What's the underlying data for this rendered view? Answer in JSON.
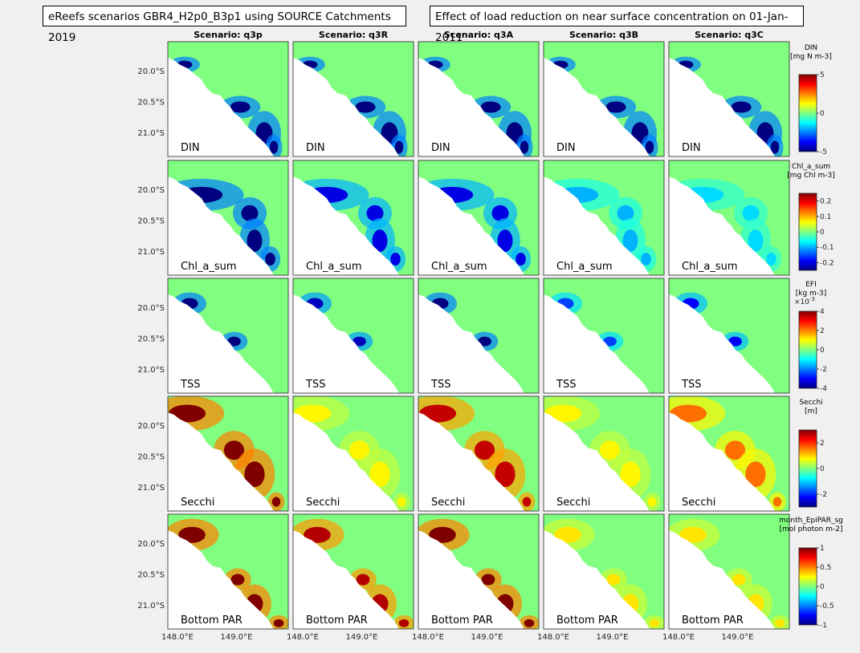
{
  "header": {
    "title_left": "eReefs scenarios GBR4_H2p0_B3p1 using SOURCE Catchments 2019",
    "title_right": "Effect of load reduction on near surface concentration on 01-Jan-2011"
  },
  "chart_data": {
    "type": "heatmap",
    "scenarios": [
      "Scenario: q3p",
      "Scenario: q3R",
      "Scenario: q3A",
      "Scenario: q3B",
      "Scenario: q3C"
    ],
    "lat_ticks": [
      "20.0°S",
      "20.5°S",
      "21.0°S"
    ],
    "lon_ticks": [
      "148.0°E",
      "149.0°E"
    ],
    "variables": [
      {
        "label": "DIN",
        "cbar_title": [
          "DIN",
          "[mg N m-3]"
        ],
        "cbar_ticks": [
          "5",
          "0",
          "-5"
        ],
        "cbar_range": [
          -5,
          5
        ],
        "panel_extremes": [
          -5,
          -5,
          -5,
          -5,
          -5
        ]
      },
      {
        "label": "Chl_a_sum",
        "cbar_title": [
          "Chl_a_sum",
          "[mg Chl m-3]"
        ],
        "cbar_ticks": [
          "0.2",
          "0.1",
          "0",
          "-0.1",
          "-0.2"
        ],
        "cbar_range": [
          -0.25,
          0.25
        ],
        "panel_extremes": [
          -0.25,
          -0.2,
          -0.2,
          -0.1,
          -0.08
        ]
      },
      {
        "label": "TSS",
        "cbar_title": [
          "EFI",
          "[kg m-3]"
        ],
        "cbar_exponent": "×10",
        "cbar_exponent_power": "-3",
        "cbar_ticks": [
          "4",
          "2",
          "0",
          "-2",
          "-4"
        ],
        "cbar_range": [
          -4,
          4
        ],
        "panel_extremes": [
          -4,
          -3.5,
          -4,
          -2.5,
          -3
        ]
      },
      {
        "label": "Secchi",
        "cbar_title": [
          "Secchi",
          "[m]"
        ],
        "cbar_ticks": [
          "2",
          "0",
          "-2"
        ],
        "cbar_range": [
          -3,
          3
        ],
        "panel_extremes": [
          3,
          0.8,
          2.6,
          0.8,
          1.6
        ]
      },
      {
        "label": "Bottom PAR",
        "cbar_title": [
          "month_EpiPAR_sg",
          "[mol photon m-2]"
        ],
        "cbar_ticks": [
          "1",
          "0.5",
          "0",
          "-0.5",
          "-1"
        ],
        "cbar_range": [
          -1,
          1
        ],
        "panel_extremes": [
          1,
          0.9,
          1,
          0.3,
          0.3
        ]
      }
    ]
  }
}
